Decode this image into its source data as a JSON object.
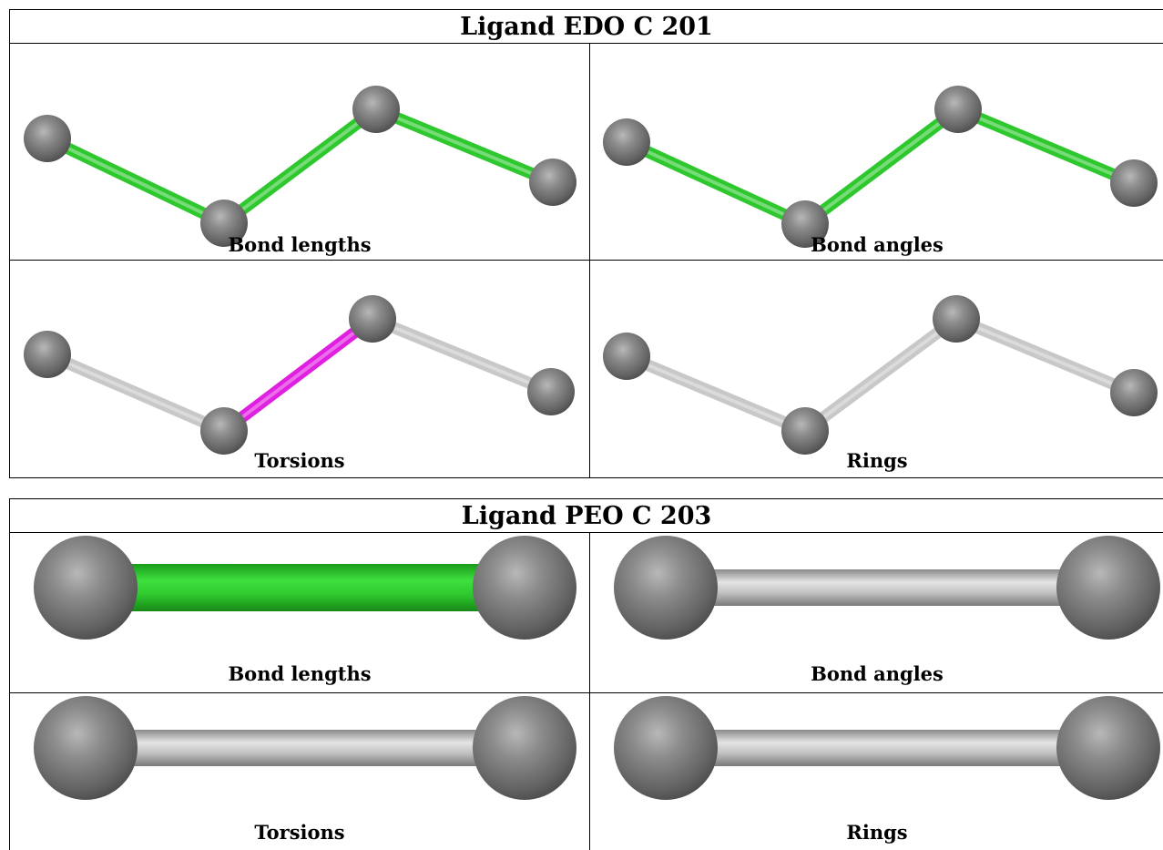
{
  "ligands": [
    {
      "title": "Ligand EDO C 201",
      "panels": [
        {
          "caption": "Bond lengths",
          "bonds": [
            "green",
            "green",
            "green"
          ]
        },
        {
          "caption": "Bond angles",
          "bonds": [
            "green",
            "green",
            "green"
          ]
        },
        {
          "caption": "Torsions",
          "bonds": [
            "grey",
            "magenta",
            "grey"
          ]
        },
        {
          "caption": "Rings",
          "bonds": [
            "grey",
            "grey",
            "grey"
          ]
        }
      ]
    },
    {
      "title": "Ligand PEO C 203",
      "panels": [
        {
          "caption": "Bond lengths",
          "bonds": [
            "green"
          ]
        },
        {
          "caption": "Bond angles",
          "bonds": [
            "grey"
          ]
        },
        {
          "caption": "Torsions",
          "bonds": [
            "grey"
          ]
        },
        {
          "caption": "Rings",
          "bonds": [
            "grey"
          ]
        }
      ]
    }
  ],
  "colors": {
    "green": "#2ec82e",
    "magenta": "#e020e0",
    "grey": "#c8c8c8",
    "atom": "#6e6e6e"
  }
}
